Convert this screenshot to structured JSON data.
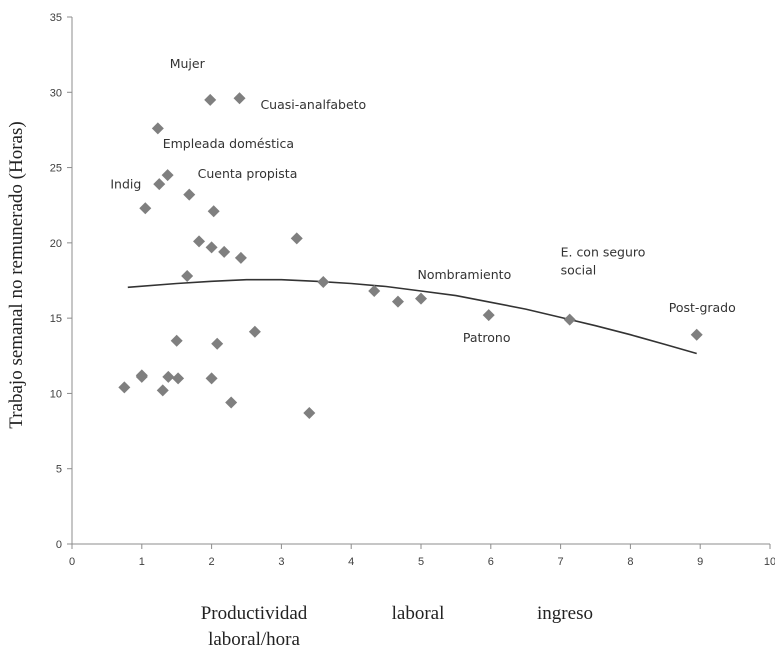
{
  "chart_data": {
    "type": "scatter",
    "title": "",
    "ylabel": "Trabajo semanal no remunerado (Horas)",
    "xlabel_parts": [
      "Productividad",
      "laboral/hora",
      "laboral",
      "ingreso"
    ],
    "xlim": [
      0,
      10
    ],
    "ylim": [
      0,
      35
    ],
    "x_ticks": [
      "0",
      "1",
      "2",
      "3",
      "4",
      "5",
      "6",
      "7",
      "8",
      "9",
      "10"
    ],
    "y_ticks": [
      "0",
      "5",
      "10",
      "15",
      "20",
      "25",
      "30",
      "35"
    ],
    "grid": false,
    "legend": "none",
    "marker_color": "#7f7f7f",
    "trend_color": "#333333",
    "points": [
      {
        "x": 0.75,
        "y": 10.4
      },
      {
        "x": 1.0,
        "y": 11.2
      },
      {
        "x": 1.0,
        "y": 11.1
      },
      {
        "x": 1.05,
        "y": 22.3
      },
      {
        "x": 1.23,
        "y": 27.6
      },
      {
        "x": 1.25,
        "y": 23.9
      },
      {
        "x": 1.3,
        "y": 10.2
      },
      {
        "x": 1.37,
        "y": 24.5
      },
      {
        "x": 1.38,
        "y": 11.1
      },
      {
        "x": 1.5,
        "y": 13.5
      },
      {
        "x": 1.52,
        "y": 11.0
      },
      {
        "x": 1.65,
        "y": 17.8
      },
      {
        "x": 1.68,
        "y": 23.2
      },
      {
        "x": 1.82,
        "y": 20.1
      },
      {
        "x": 1.98,
        "y": 29.5
      },
      {
        "x": 2.0,
        "y": 19.7
      },
      {
        "x": 2.0,
        "y": 11.0
      },
      {
        "x": 2.03,
        "y": 22.1
      },
      {
        "x": 2.08,
        "y": 13.3
      },
      {
        "x": 2.18,
        "y": 19.4
      },
      {
        "x": 2.28,
        "y": 9.4
      },
      {
        "x": 2.4,
        "y": 29.6
      },
      {
        "x": 2.42,
        "y": 19.0
      },
      {
        "x": 2.62,
        "y": 14.1
      },
      {
        "x": 3.22,
        "y": 20.3
      },
      {
        "x": 3.4,
        "y": 8.7
      },
      {
        "x": 3.6,
        "y": 17.4
      },
      {
        "x": 4.33,
        "y": 16.8
      },
      {
        "x": 4.67,
        "y": 16.1
      },
      {
        "x": 5.0,
        "y": 16.3
      },
      {
        "x": 5.97,
        "y": 15.2
      },
      {
        "x": 7.13,
        "y": 14.9
      },
      {
        "x": 8.95,
        "y": 13.9
      }
    ],
    "trendline": {
      "type": "polynomial-2",
      "x": [
        0.8,
        1.5,
        2.0,
        2.5,
        3.0,
        3.5,
        4.0,
        4.5,
        5.0,
        5.5,
        6.0,
        6.5,
        7.0,
        7.5,
        8.0,
        8.5,
        8.95
      ],
      "y": [
        17.05,
        17.3,
        17.45,
        17.55,
        17.55,
        17.45,
        17.3,
        17.1,
        16.8,
        16.5,
        16.05,
        15.6,
        15.05,
        14.5,
        13.9,
        13.25,
        12.65
      ]
    },
    "annotations": [
      {
        "text": "Mujer",
        "x": 1.4,
        "y": 31.6
      },
      {
        "text": "Cuasi-analfabeto",
        "x": 2.7,
        "y": 28.9
      },
      {
        "text": "Empleada doméstica",
        "x": 1.3,
        "y": 26.3
      },
      {
        "text": "Cuenta propista",
        "x": 1.8,
        "y": 24.3
      },
      {
        "text": "Indig",
        "x": 0.55,
        "y": 23.6
      },
      {
        "text": "Nombramiento",
        "x": 4.95,
        "y": 17.6
      },
      {
        "text": "E. con seguro",
        "x": 7.0,
        "y": 19.1
      },
      {
        "text": "social",
        "x": 7.0,
        "y": 17.9
      },
      {
        "text": "Post-grado",
        "x": 8.55,
        "y": 15.4
      },
      {
        "text": "Patrono",
        "x": 5.6,
        "y": 13.4
      }
    ]
  }
}
